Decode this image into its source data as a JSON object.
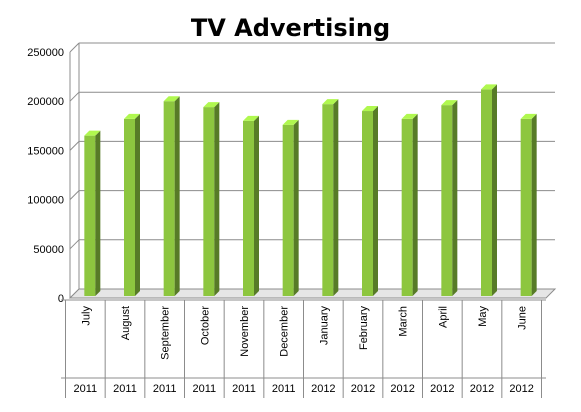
{
  "chart_data": {
    "type": "bar",
    "title": "TV Advertising",
    "xlabel": "",
    "ylabel": "",
    "ylim": [
      0,
      250000
    ],
    "yticks": [
      0,
      50000,
      100000,
      150000,
      200000,
      250000
    ],
    "grid": true,
    "legend": "none",
    "bar_color": "#8dc63f",
    "categories": [
      "July",
      "August",
      "September",
      "October",
      "November",
      "December",
      "January",
      "February",
      "March",
      "April",
      "May",
      "June"
    ],
    "years": [
      "2011",
      "2011",
      "2011",
      "2011",
      "2011",
      "2011",
      "2012",
      "2012",
      "2012",
      "2012",
      "2012",
      "2012"
    ],
    "values": [
      165000,
      182000,
      200000,
      194000,
      180000,
      176000,
      197000,
      190000,
      182000,
      196000,
      212000,
      182000
    ]
  }
}
